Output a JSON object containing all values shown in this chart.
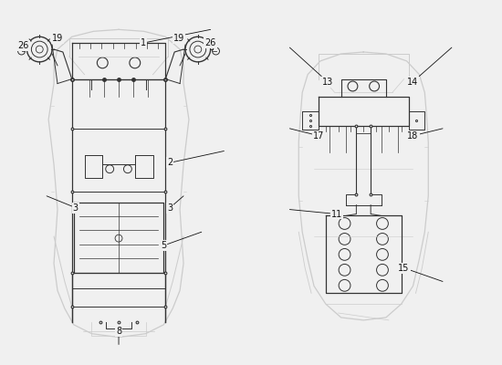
{
  "bg_color": "#f0f0f0",
  "line_color": "#333333",
  "car_color": "#cccccc",
  "label_color": "#111111",
  "fig_width": 5.5,
  "fig_height": 4.0,
  "dpi": 100
}
